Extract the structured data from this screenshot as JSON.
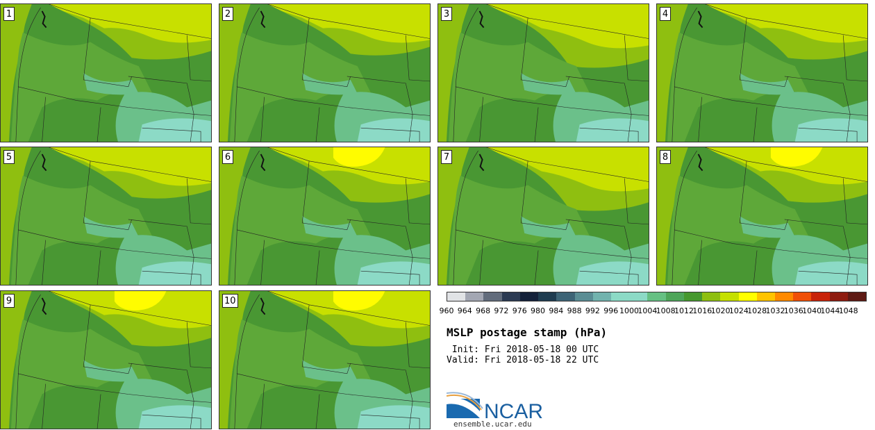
{
  "panels": [
    {
      "label": "1",
      "variant": 0
    },
    {
      "label": "2",
      "variant": 1
    },
    {
      "label": "3",
      "variant": 2
    },
    {
      "label": "4",
      "variant": 0
    },
    {
      "label": "5",
      "variant": 1
    },
    {
      "label": "6",
      "variant": 3
    },
    {
      "label": "7",
      "variant": 2
    },
    {
      "label": "8",
      "variant": 3
    },
    {
      "label": "9",
      "variant": 3
    },
    {
      "label": "10",
      "variant": 3
    }
  ],
  "colorbar": {
    "colors": [
      "#e1e3e6",
      "#a3a7b3",
      "#626c7c",
      "#2b3a52",
      "#14213a",
      "#1f3c50",
      "#3d6476",
      "#5a8d94",
      "#72b3ae",
      "#8cdac6",
      "#8cdac6",
      "#66c083",
      "#4ea559",
      "#46982e",
      "#8ebf10",
      "#c5e000",
      "#ffff00",
      "#ffc400",
      "#ff8a00",
      "#f05008",
      "#c8230a",
      "#8e1c10",
      "#5e1a14"
    ],
    "ticks": [
      "960",
      "964",
      "968",
      "972",
      "976",
      "980",
      "984",
      "988",
      "992",
      "996",
      "1000",
      "1004",
      "1008",
      "1012",
      "1016",
      "1020",
      "1024",
      "1028",
      "1032",
      "1036",
      "1040",
      "1044",
      "1048"
    ]
  },
  "title": "MSLP postage stamp (hPa)",
  "init_label": " Init: Fri 2018-05-18 00 UTC",
  "valid_label": "Valid: Fri 2018-05-18 22 UTC",
  "logo": {
    "text": "NCAR",
    "url": "ensemble.ucar.edu"
  }
}
